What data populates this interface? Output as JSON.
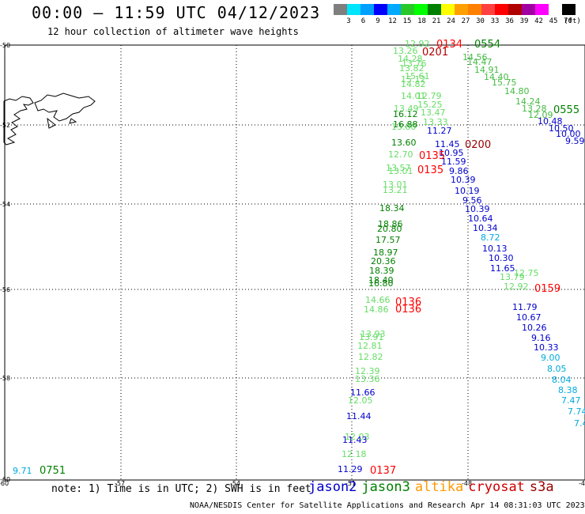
{
  "header": {
    "title": "00:00 – 11:59 UTC 04/12/2023",
    "subtitle": "12 hour collection of altimeter wave heights"
  },
  "colorbar": {
    "unit": "(ft)",
    "colors": [
      "#7f7f7f",
      "#00e5ff",
      "#00a0ff",
      "#0000ff",
      "#00aaff",
      "#28c828",
      "#00ff00",
      "#008000",
      "#ffff00",
      "#ffa000",
      "#ff8000",
      "#ff4040",
      "#ff0000",
      "#b00000",
      "#a000a0",
      "#ff00ff",
      "#ffffff",
      "#000000"
    ],
    "labels": [
      "3",
      "6",
      "9",
      "12",
      "15",
      "18",
      "21",
      "24",
      "27",
      "30",
      "33",
      "36",
      "39",
      "42",
      "45",
      "70"
    ]
  },
  "axes": {
    "lat_labels": [
      "-50",
      "-52",
      "-54",
      "-56",
      "-58",
      "-60"
    ],
    "lon_labels": [
      "-60",
      "-57",
      "-54",
      "-51",
      "-48",
      "-45"
    ]
  },
  "tracks": {
    "green_times": [
      {
        "t": "0554"
      },
      {
        "t": "0555"
      },
      {
        "t": "0751"
      }
    ],
    "red_times": [
      {
        "t": "0134"
      },
      {
        "t": "0201"
      },
      {
        "t": "0135"
      },
      {
        "t": "0135"
      },
      {
        "t": "0136"
      },
      {
        "t": "0136"
      },
      {
        "t": "0137"
      },
      {
        "t": "0159"
      }
    ],
    "darkred_times": [
      {
        "t": "0200"
      }
    ],
    "light_green_values": [
      "12.92",
      "13.26",
      "14.28",
      "13.76",
      "13.82",
      "14.82",
      "15.61",
      "15.12",
      "14.01",
      "12.79",
      "15.25",
      "13.49",
      "13.47",
      "13.33",
      "13.80",
      "12.70",
      "13.57",
      "13.01",
      "13.01",
      "13.21",
      "12.75",
      "13.79",
      "12.92",
      "14.66",
      "13.91",
      "14.86",
      "13.93",
      "12.81",
      "12.82",
      "12.39",
      "13.36",
      "12.05",
      "12.03",
      "12.18"
    ],
    "dark_green_values": [
      "16.12",
      "16.88",
      "13.60",
      "18.34",
      "18.86",
      "20.80",
      "17.57",
      "18.97",
      "20.36",
      "18.39",
      "18.40",
      "16.80"
    ],
    "mid_green_values": [
      "14.47",
      "14.56",
      "14.91",
      "14.40",
      "15.75",
      "14.80",
      "14.24",
      "13.28",
      "12.09"
    ],
    "blue_values": [
      "11.27",
      "11.45",
      "10.95",
      "11.59",
      "9.86",
      "10.39",
      "10.19",
      "9.56",
      "10.39",
      "10.64",
      "10.34",
      "10.13",
      "10.30",
      "11.65",
      "11.79",
      "10.67",
      "10.26",
      "9.16",
      "10.33",
      "10.48",
      "10.50",
      "10.00",
      "9.59",
      "11.66",
      "11.44",
      "11.43",
      "11.29"
    ],
    "cyan_values": [
      "8.72",
      "9.00",
      "8.05",
      "8.04",
      "8.38",
      "7.47",
      "7.74",
      "7.4",
      "9.71"
    ]
  },
  "legend": {
    "note": "note: 1) Time is in UTC; 2) SWH is in feet"
  },
  "satellites": [
    {
      "name": "jason2",
      "color": "#0000cc"
    },
    {
      "name": "jason3",
      "color": "#008000"
    },
    {
      "name": "altika",
      "color": "#ff9900"
    },
    {
      "name": "cryosat",
      "color": "#cc0000"
    },
    {
      "name": "s3a",
      "color": "#990000"
    }
  ],
  "credit": "NOAA/NESDIS Center for Satellite Applications and Research    Apr 14 08:31:03 UTC 2023"
}
